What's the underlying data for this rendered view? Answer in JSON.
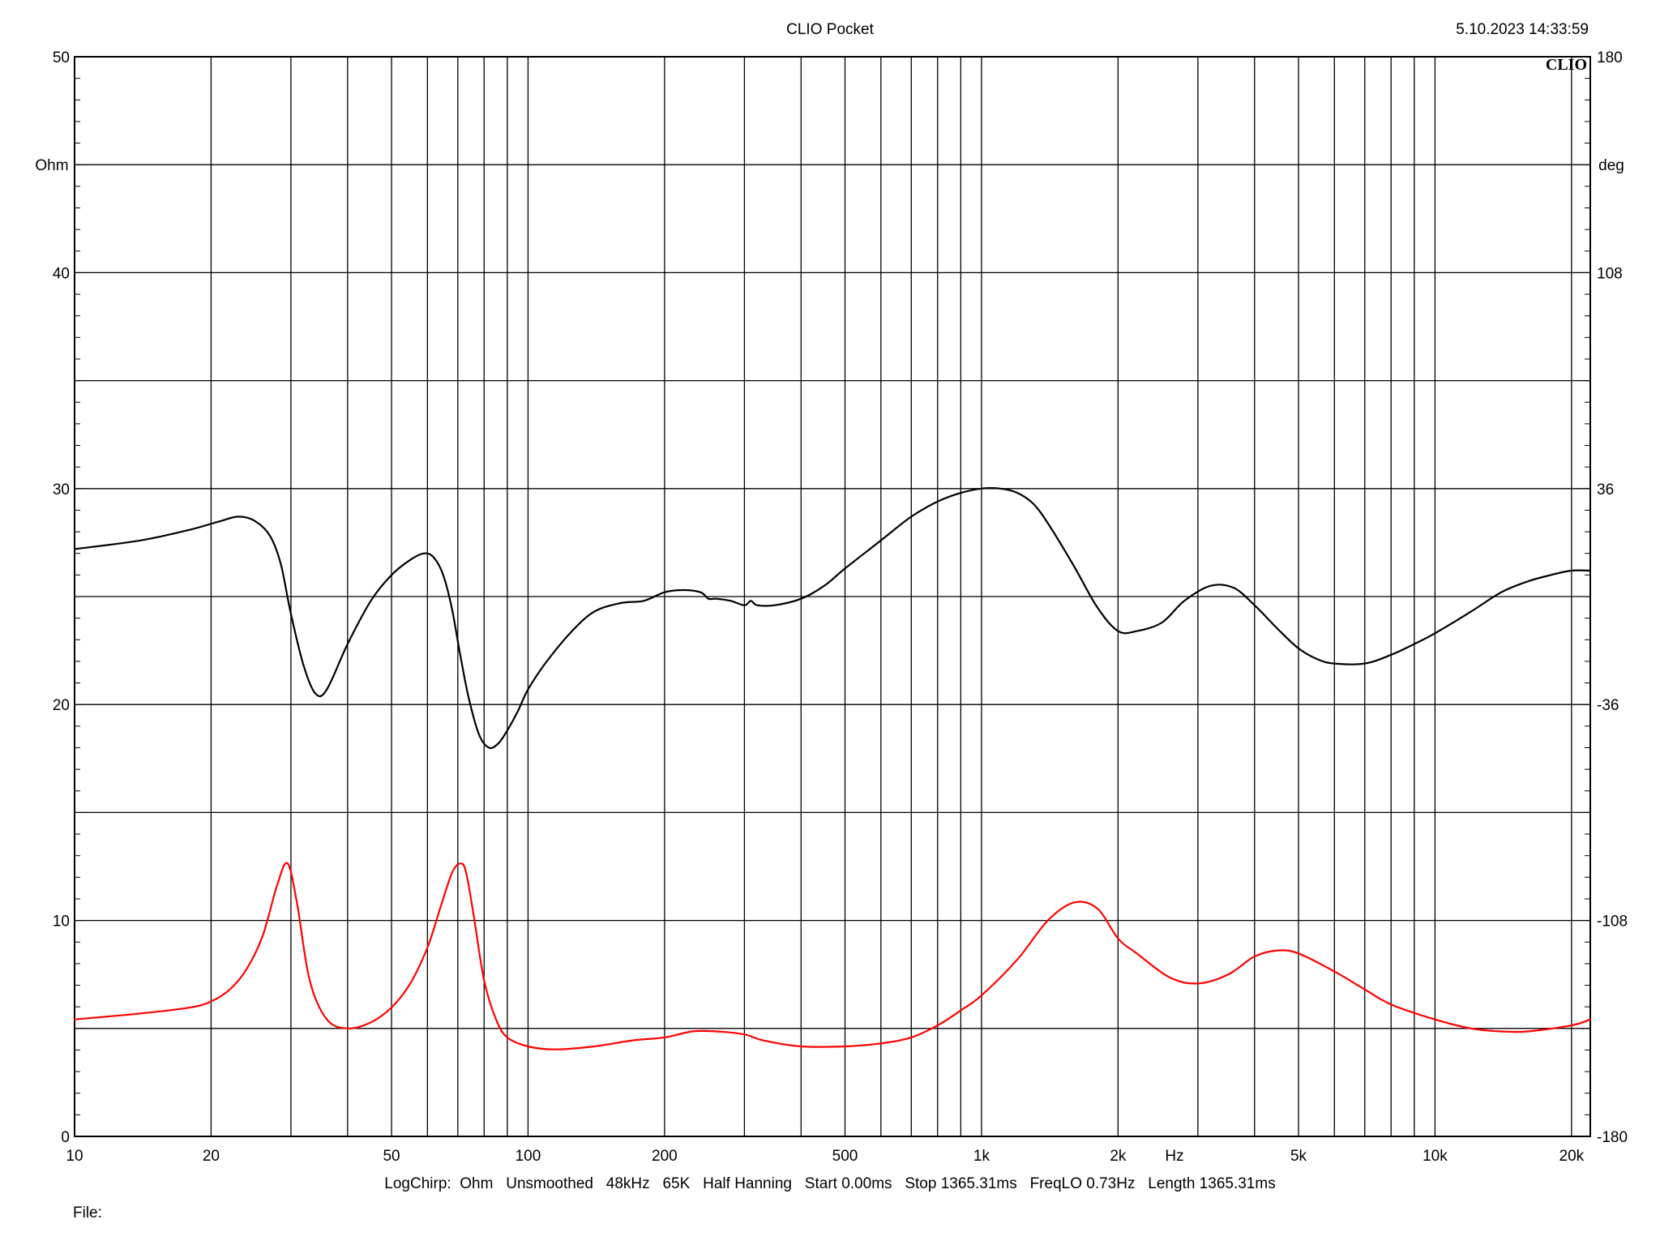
{
  "header": {
    "title": "CLIO Pocket",
    "timestamp": "5.10.2023 14:33:59",
    "logo": "CLIO"
  },
  "footer": {
    "settings": "LogChirp:  Ohm   Unsmoothed   48kHz   65K   Half Hanning   Start 0.00ms   Stop 1365.31ms   FreqLO 0.73Hz   Length 1365.31ms",
    "file_label": "File:"
  },
  "colors": {
    "background": "#ffffff",
    "grid": "#000000",
    "magnitude": "#000000",
    "phase": "#ff0000"
  },
  "chart_data": {
    "type": "line",
    "title": "CLIO Pocket",
    "x_scale": "log",
    "xlim": [
      10,
      22000
    ],
    "x_ticks": [
      {
        "value": 10,
        "label": "10"
      },
      {
        "value": 20,
        "label": "20"
      },
      {
        "value": 50,
        "label": "50"
      },
      {
        "value": 100,
        "label": "100"
      },
      {
        "value": 200,
        "label": "200"
      },
      {
        "value": 500,
        "label": "500"
      },
      {
        "value": 1000,
        "label": "1k"
      },
      {
        "value": 2000,
        "label": "2k"
      },
      {
        "value": 5000,
        "label": "5k"
      },
      {
        "value": 10000,
        "label": "10k"
      },
      {
        "value": 20000,
        "label": "20k"
      }
    ],
    "xunit": "Hz",
    "ylabel_left": "Ohm",
    "ylim_left": [
      0,
      50
    ],
    "y_ticks_left": [
      "0",
      "10",
      "20",
      "30",
      "40",
      "50"
    ],
    "ylabel_right": "deg",
    "ylim_right": [
      -180,
      180
    ],
    "y_ticks_right": [
      "-180",
      "-108",
      "-36",
      "36",
      "108",
      "180"
    ],
    "grid": true,
    "series": [
      {
        "axis": "left",
        "color": "#000000",
        "x": [
          10,
          14,
          18,
          21,
          23,
          25,
          27,
          28.5,
          30,
          32,
          34,
          36,
          40,
          45,
          50,
          55,
          59,
          62,
          65,
          68,
          71,
          74,
          78,
          82,
          86,
          90,
          95,
          100,
          110,
          125,
          140,
          160,
          180,
          200,
          220,
          240,
          250,
          260,
          280,
          300,
          310,
          320,
          350,
          400,
          450,
          500,
          600,
          700,
          800,
          900,
          1000,
          1100,
          1200,
          1300,
          1400,
          1600,
          1800,
          2000,
          2200,
          2500,
          2800,
          3200,
          3600,
          4000,
          4500,
          5000,
          5500,
          6000,
          7000,
          8000,
          9000,
          10000,
          12000,
          14000,
          16000,
          18000,
          20000,
          22000
        ],
        "values": [
          27.2,
          27.6,
          28.1,
          28.5,
          28.7,
          28.5,
          27.8,
          26.5,
          24.2,
          21.8,
          20.5,
          20.7,
          22.8,
          24.8,
          26.0,
          26.7,
          27.0,
          26.8,
          26.0,
          24.4,
          22.2,
          20.3,
          18.6,
          18.0,
          18.2,
          18.8,
          19.7,
          20.7,
          22.0,
          23.4,
          24.3,
          24.7,
          24.8,
          25.2,
          25.3,
          25.2,
          24.9,
          24.9,
          24.8,
          24.6,
          24.8,
          24.6,
          24.6,
          24.9,
          25.5,
          26.3,
          27.6,
          28.7,
          29.4,
          29.8,
          30.0,
          30.0,
          29.8,
          29.3,
          28.4,
          26.4,
          24.5,
          23.4,
          23.4,
          23.8,
          24.8,
          25.5,
          25.4,
          24.6,
          23.5,
          22.6,
          22.1,
          21.9,
          21.9,
          22.3,
          22.8,
          23.3,
          24.3,
          25.2,
          25.7,
          26.0,
          26.2,
          26.2
        ]
      },
      {
        "axis": "right",
        "color": "#ff0000",
        "x": [
          10,
          14,
          18,
          20,
          22,
          24,
          26,
          28,
          29.5,
          31,
          33,
          36,
          40,
          45,
          50,
          55,
          60,
          64,
          68,
          71,
          73,
          76,
          80,
          85,
          90,
          100,
          115,
          140,
          170,
          200,
          230,
          260,
          300,
          330,
          400,
          500,
          600,
          700,
          800,
          900,
          1000,
          1200,
          1400,
          1600,
          1800,
          2000,
          2200,
          2600,
          3000,
          3500,
          4000,
          4500,
          5000,
          6000,
          7000,
          8000,
          10000,
          12000,
          14000,
          16000,
          20000,
          22000
        ],
        "values": [
          -141,
          -139,
          -137,
          -135,
          -131,
          -124,
          -113,
          -96,
          -89,
          -103,
          -128,
          -141,
          -144,
          -142,
          -137,
          -129,
          -117,
          -104,
          -92,
          -89,
          -92,
          -107,
          -128,
          -141,
          -147,
          -150,
          -151,
          -150,
          -148,
          -147,
          -145,
          -145,
          -146,
          -148,
          -150,
          -150,
          -149,
          -147,
          -143,
          -138,
          -133,
          -121,
          -108,
          -102,
          -104,
          -114,
          -119,
          -127,
          -129,
          -126,
          -120,
          -118,
          -119,
          -125,
          -131,
          -136,
          -141,
          -144,
          -145,
          -145,
          -143,
          -141
        ]
      }
    ]
  }
}
